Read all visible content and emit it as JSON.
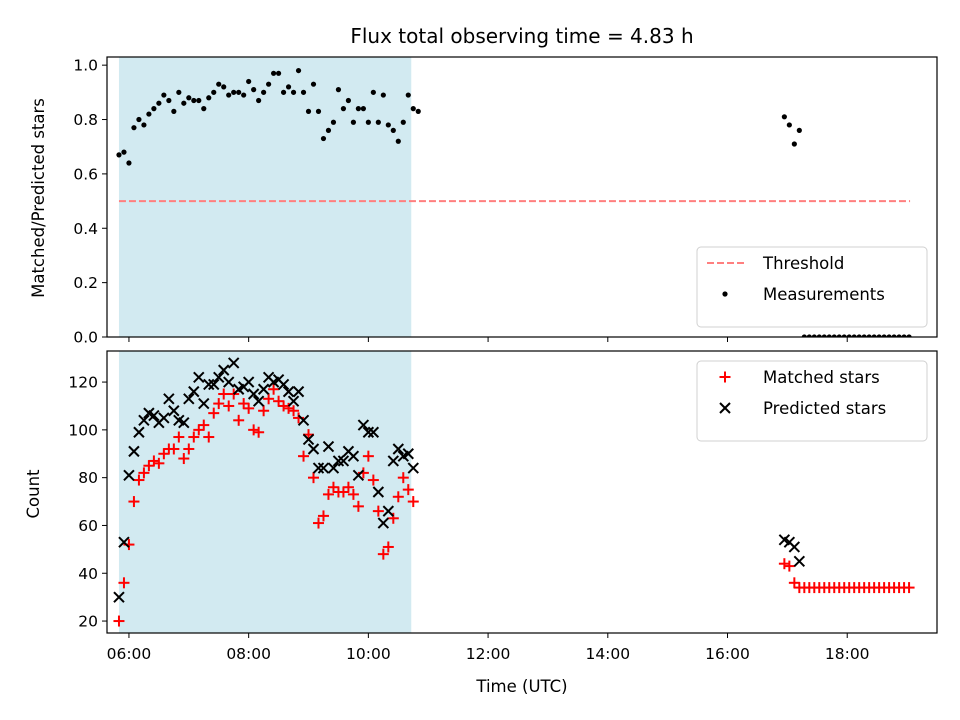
{
  "figure": {
    "title": "Flux total observing time = 4.83 h",
    "xlabel": "Time (UTC)",
    "x_ticks": [
      "06:00",
      "08:00",
      "10:00",
      "12:00",
      "14:00",
      "16:00",
      "18:00"
    ]
  },
  "chart_data": [
    {
      "type": "scatter",
      "title": "Flux total observing time = 4.83 h",
      "ylabel": "Matched/Predicted stars",
      "xlim": [
        "05:38",
        "19:30"
      ],
      "ylim": [
        0.0,
        1.03
      ],
      "y_ticks": [
        "0.0",
        "0.2",
        "0.4",
        "0.6",
        "0.8",
        "1.0"
      ],
      "shaded_span": {
        "x0": "05:50",
        "x1": "10:43",
        "color": "#add8e6"
      },
      "legend": {
        "placement": "lower-right",
        "entries": [
          "Threshold",
          "Measurements"
        ]
      },
      "series": [
        {
          "name": "Threshold",
          "kind": "dashed-line",
          "color": "#ff7f7f",
          "x": [
            "05:50",
            "19:03"
          ],
          "y": [
            0.5,
            0.5
          ]
        },
        {
          "name": "Measurements",
          "kind": "points",
          "color": "#000000",
          "points": [
            [
              "05:50",
              0.67
            ],
            [
              "05:55",
              0.68
            ],
            [
              "06:00",
              0.64
            ],
            [
              "06:05",
              0.77
            ],
            [
              "06:10",
              0.8
            ],
            [
              "06:15",
              0.78
            ],
            [
              "06:20",
              0.82
            ],
            [
              "06:25",
              0.84
            ],
            [
              "06:30",
              0.86
            ],
            [
              "06:35",
              0.89
            ],
            [
              "06:40",
              0.87
            ],
            [
              "06:45",
              0.83
            ],
            [
              "06:50",
              0.9
            ],
            [
              "06:55",
              0.86
            ],
            [
              "07:00",
              0.88
            ],
            [
              "07:05",
              0.87
            ],
            [
              "07:10",
              0.87
            ],
            [
              "07:15",
              0.84
            ],
            [
              "07:20",
              0.88
            ],
            [
              "07:25",
              0.9
            ],
            [
              "07:30",
              0.93
            ],
            [
              "07:35",
              0.92
            ],
            [
              "07:40",
              0.89
            ],
            [
              "07:45",
              0.9
            ],
            [
              "07:50",
              0.9
            ],
            [
              "07:55",
              0.89
            ],
            [
              "08:00",
              0.94
            ],
            [
              "08:05",
              0.91
            ],
            [
              "08:10",
              0.87
            ],
            [
              "08:15",
              0.9
            ],
            [
              "08:20",
              0.93
            ],
            [
              "08:25",
              0.97
            ],
            [
              "08:30",
              0.97
            ],
            [
              "08:35",
              0.9
            ],
            [
              "08:40",
              0.92
            ],
            [
              "08:45",
              0.9
            ],
            [
              "08:50",
              0.98
            ],
            [
              "08:55",
              0.9
            ],
            [
              "09:00",
              0.83
            ],
            [
              "09:05",
              0.93
            ],
            [
              "09:10",
              0.83
            ],
            [
              "09:15",
              0.73
            ],
            [
              "09:20",
              0.76
            ],
            [
              "09:25",
              0.79
            ],
            [
              "09:30",
              0.91
            ],
            [
              "09:35",
              0.84
            ],
            [
              "09:40",
              0.87
            ],
            [
              "09:45",
              0.79
            ],
            [
              "09:50",
              0.84
            ],
            [
              "09:55",
              0.84
            ],
            [
              "10:00",
              0.79
            ],
            [
              "10:05",
              0.9
            ],
            [
              "10:10",
              0.79
            ],
            [
              "10:15",
              0.89
            ],
            [
              "10:20",
              0.78
            ],
            [
              "10:25",
              0.76
            ],
            [
              "10:30",
              0.72
            ],
            [
              "10:35",
              0.79
            ],
            [
              "10:40",
              0.89
            ],
            [
              "10:45",
              0.84
            ],
            [
              "10:50",
              0.83
            ],
            [
              "16:57",
              0.81
            ],
            [
              "17:02",
              0.78
            ],
            [
              "17:07",
              0.71
            ],
            [
              "17:12",
              0.76
            ],
            [
              "17:17",
              0.0
            ],
            [
              "17:22",
              0.0
            ],
            [
              "17:27",
              0.0
            ],
            [
              "17:32",
              0.0
            ],
            [
              "17:37",
              0.0
            ],
            [
              "17:42",
              0.0
            ],
            [
              "17:47",
              0.0
            ],
            [
              "17:52",
              0.0
            ],
            [
              "17:57",
              0.0
            ],
            [
              "18:02",
              0.0
            ],
            [
              "18:07",
              0.0
            ],
            [
              "18:12",
              0.0
            ],
            [
              "18:17",
              0.0
            ],
            [
              "18:22",
              0.0
            ],
            [
              "18:27",
              0.0
            ],
            [
              "18:32",
              0.0
            ],
            [
              "18:37",
              0.0
            ],
            [
              "18:42",
              0.0
            ],
            [
              "18:47",
              0.0
            ],
            [
              "18:52",
              0.0
            ],
            [
              "18:57",
              0.0
            ],
            [
              "19:02",
              0.0
            ]
          ]
        }
      ]
    },
    {
      "type": "scatter",
      "ylabel": "Count",
      "xlabel": "Time (UTC)",
      "xlim": [
        "05:38",
        "19:30"
      ],
      "ylim": [
        15,
        133
      ],
      "y_ticks": [
        "20",
        "40",
        "60",
        "80",
        "100",
        "120"
      ],
      "shaded_span": {
        "x0": "05:50",
        "x1": "10:43",
        "color": "#add8e6"
      },
      "legend": {
        "placement": "upper-right",
        "entries": [
          "Matched stars",
          "Predicted stars"
        ]
      },
      "series": [
        {
          "name": "Matched stars",
          "kind": "plus",
          "color": "#ff0000",
          "points": [
            [
              "05:50",
              20
            ],
            [
              "05:55",
              36
            ],
            [
              "06:00",
              52
            ],
            [
              "06:05",
              70
            ],
            [
              "06:10",
              79
            ],
            [
              "06:15",
              82
            ],
            [
              "06:20",
              85
            ],
            [
              "06:25",
              87
            ],
            [
              "06:30",
              86
            ],
            [
              "06:35",
              90
            ],
            [
              "06:40",
              92
            ],
            [
              "06:45",
              92
            ],
            [
              "06:50",
              97
            ],
            [
              "06:55",
              88
            ],
            [
              "07:00",
              92
            ],
            [
              "07:05",
              97
            ],
            [
              "07:10",
              100
            ],
            [
              "07:15",
              102
            ],
            [
              "07:20",
              97
            ],
            [
              "07:25",
              107
            ],
            [
              "07:30",
              111
            ],
            [
              "07:35",
              115
            ],
            [
              "07:40",
              110
            ],
            [
              "07:45",
              115
            ],
            [
              "07:50",
              104
            ],
            [
              "07:55",
              111
            ],
            [
              "08:00",
              109
            ],
            [
              "08:05",
              100
            ],
            [
              "08:10",
              99
            ],
            [
              "08:15",
              108
            ],
            [
              "08:20",
              113
            ],
            [
              "08:25",
              117
            ],
            [
              "08:30",
              112
            ],
            [
              "08:35",
              110
            ],
            [
              "08:40",
              109
            ],
            [
              "08:45",
              108
            ],
            [
              "08:50",
              105
            ],
            [
              "08:55",
              89
            ],
            [
              "09:00",
              98
            ],
            [
              "09:05",
              80
            ],
            [
              "09:10",
              61
            ],
            [
              "09:15",
              64
            ],
            [
              "09:20",
              73
            ],
            [
              "09:25",
              76
            ],
            [
              "09:30",
              74
            ],
            [
              "09:35",
              74
            ],
            [
              "09:40",
              76
            ],
            [
              "09:45",
              73
            ],
            [
              "09:50",
              68
            ],
            [
              "09:55",
              82
            ],
            [
              "10:00",
              89
            ],
            [
              "10:05",
              79
            ],
            [
              "10:10",
              66
            ],
            [
              "10:15",
              48
            ],
            [
              "10:20",
              51
            ],
            [
              "10:25",
              63
            ],
            [
              "10:30",
              72
            ],
            [
              "10:35",
              80
            ],
            [
              "10:40",
              75
            ],
            [
              "10:45",
              70
            ],
            [
              "16:57",
              44
            ],
            [
              "17:02",
              43
            ],
            [
              "17:07",
              36
            ],
            [
              "17:12",
              34
            ],
            [
              "17:17",
              34
            ],
            [
              "17:22",
              34
            ],
            [
              "17:27",
              34
            ],
            [
              "17:32",
              34
            ],
            [
              "17:37",
              34
            ],
            [
              "17:42",
              34
            ],
            [
              "17:47",
              34
            ],
            [
              "17:52",
              34
            ],
            [
              "17:57",
              34
            ],
            [
              "18:02",
              34
            ],
            [
              "18:07",
              34
            ],
            [
              "18:12",
              34
            ],
            [
              "18:17",
              34
            ],
            [
              "18:22",
              34
            ],
            [
              "18:27",
              34
            ],
            [
              "18:32",
              34
            ],
            [
              "18:37",
              34
            ],
            [
              "18:42",
              34
            ],
            [
              "18:47",
              34
            ],
            [
              "18:52",
              34
            ],
            [
              "18:57",
              34
            ],
            [
              "19:02",
              34
            ]
          ]
        },
        {
          "name": "Predicted stars",
          "kind": "x",
          "color": "#000000",
          "points": [
            [
              "05:50",
              30
            ],
            [
              "05:55",
              53
            ],
            [
              "06:00",
              81
            ],
            [
              "06:05",
              91
            ],
            [
              "06:10",
              99
            ],
            [
              "06:15",
              104
            ],
            [
              "06:20",
              107
            ],
            [
              "06:25",
              106
            ],
            [
              "06:30",
              103
            ],
            [
              "06:35",
              105
            ],
            [
              "06:40",
              113
            ],
            [
              "06:45",
              108
            ],
            [
              "06:50",
              104
            ],
            [
              "06:55",
              103
            ],
            [
              "07:00",
              113
            ],
            [
              "07:05",
              116
            ],
            [
              "07:10",
              122
            ],
            [
              "07:15",
              111
            ],
            [
              "07:20",
              119
            ],
            [
              "07:25",
              119
            ],
            [
              "07:30",
              122
            ],
            [
              "07:35",
              125
            ],
            [
              "07:40",
              120
            ],
            [
              "07:45",
              128
            ],
            [
              "07:50",
              117
            ],
            [
              "07:55",
              118
            ],
            [
              "08:00",
              120
            ],
            [
              "08:05",
              115
            ],
            [
              "08:10",
              112
            ],
            [
              "08:15",
              117
            ],
            [
              "08:20",
              122
            ],
            [
              "08:25",
              120
            ],
            [
              "08:30",
              121
            ],
            [
              "08:35",
              119
            ],
            [
              "08:40",
              116
            ],
            [
              "08:45",
              112
            ],
            [
              "08:50",
              116
            ],
            [
              "08:55",
              104
            ],
            [
              "09:00",
              96
            ],
            [
              "09:05",
              92
            ],
            [
              "09:10",
              84
            ],
            [
              "09:15",
              84
            ],
            [
              "09:20",
              93
            ],
            [
              "09:25",
              84
            ],
            [
              "09:30",
              87
            ],
            [
              "09:35",
              87
            ],
            [
              "09:40",
              91
            ],
            [
              "09:45",
              89
            ],
            [
              "09:50",
              81
            ],
            [
              "09:55",
              102
            ],
            [
              "10:00",
              99
            ],
            [
              "10:05",
              99
            ],
            [
              "10:10",
              74
            ],
            [
              "10:15",
              61
            ],
            [
              "10:20",
              66
            ],
            [
              "10:25",
              87
            ],
            [
              "10:30",
              92
            ],
            [
              "10:35",
              89
            ],
            [
              "10:40",
              90
            ],
            [
              "10:45",
              84
            ],
            [
              "16:57",
              54
            ],
            [
              "17:02",
              53
            ],
            [
              "17:07",
              51
            ],
            [
              "17:12",
              45
            ]
          ]
        }
      ]
    }
  ]
}
